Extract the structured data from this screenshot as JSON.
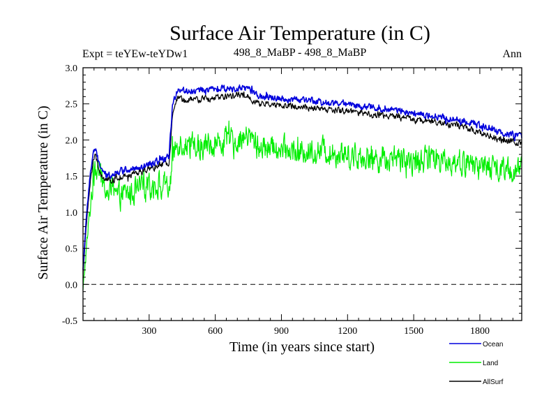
{
  "chart_data": {
    "type": "line",
    "title": "Surface Air Temperature (in C)",
    "subtitle_left": "Expt = teYEw-teYDw1",
    "subtitle_center": "498_8_MaBP - 498_8_MaBP",
    "subtitle_right": "Ann",
    "xlabel": "Time (in years since start)",
    "ylabel": "Surface Air Temperature (in C)",
    "xlim": [
      0,
      1990
    ],
    "ylim": [
      -0.5,
      3.0
    ],
    "xticks": [
      300,
      600,
      900,
      1200,
      1500,
      1800
    ],
    "yticks": [
      -0.5,
      0.0,
      0.5,
      1.0,
      1.5,
      2.0,
      2.5,
      3.0
    ],
    "ytick_labels": [
      "-0.5",
      "0.0",
      "0.5",
      "1.0",
      "1.5",
      "2.0",
      "2.5",
      "3.0"
    ],
    "zero_line": 0.0,
    "series": [
      {
        "name": "Land",
        "color": "#00ee00",
        "anchors": [
          [
            0,
            -0.1
          ],
          [
            10,
            0.3
          ],
          [
            25,
            0.8
          ],
          [
            40,
            1.3
          ],
          [
            60,
            1.6
          ],
          [
            80,
            1.5
          ],
          [
            100,
            1.3
          ],
          [
            150,
            1.2
          ],
          [
            200,
            1.25
          ],
          [
            250,
            1.3
          ],
          [
            300,
            1.35
          ],
          [
            350,
            1.4
          ],
          [
            390,
            1.3
          ],
          [
            410,
            1.8
          ],
          [
            430,
            2.0
          ],
          [
            460,
            1.95
          ],
          [
            500,
            1.9
          ],
          [
            600,
            1.95
          ],
          [
            700,
            2.0
          ],
          [
            750,
            2.05
          ],
          [
            800,
            1.9
          ],
          [
            900,
            1.85
          ],
          [
            1000,
            1.85
          ],
          [
            1100,
            1.85
          ],
          [
            1200,
            1.8
          ],
          [
            1300,
            1.75
          ],
          [
            1400,
            1.75
          ],
          [
            1500,
            1.7
          ],
          [
            1600,
            1.75
          ],
          [
            1700,
            1.7
          ],
          [
            1800,
            1.65
          ],
          [
            1900,
            1.6
          ],
          [
            1990,
            1.55
          ]
        ],
        "noise": 0.28
      },
      {
        "name": "AllSurf",
        "color": "#000000",
        "anchors": [
          [
            0,
            0.1
          ],
          [
            10,
            0.6
          ],
          [
            20,
            1.0
          ],
          [
            30,
            1.35
          ],
          [
            45,
            1.7
          ],
          [
            55,
            1.8
          ],
          [
            70,
            1.6
          ],
          [
            100,
            1.45
          ],
          [
            150,
            1.45
          ],
          [
            200,
            1.5
          ],
          [
            250,
            1.55
          ],
          [
            300,
            1.6
          ],
          [
            350,
            1.65
          ],
          [
            390,
            1.7
          ],
          [
            405,
            2.3
          ],
          [
            430,
            2.6
          ],
          [
            460,
            2.55
          ],
          [
            500,
            2.55
          ],
          [
            600,
            2.58
          ],
          [
            700,
            2.62
          ],
          [
            750,
            2.6
          ],
          [
            800,
            2.5
          ],
          [
            900,
            2.48
          ],
          [
            1000,
            2.45
          ],
          [
            1100,
            2.42
          ],
          [
            1200,
            2.4
          ],
          [
            1300,
            2.35
          ],
          [
            1400,
            2.33
          ],
          [
            1500,
            2.28
          ],
          [
            1600,
            2.25
          ],
          [
            1700,
            2.2
          ],
          [
            1800,
            2.1
          ],
          [
            1900,
            2.0
          ],
          [
            1990,
            1.95
          ]
        ],
        "noise": 0.07
      },
      {
        "name": "Ocean",
        "color": "#0000dd",
        "anchors": [
          [
            0,
            0.2
          ],
          [
            10,
            0.7
          ],
          [
            20,
            1.1
          ],
          [
            30,
            1.45
          ],
          [
            45,
            1.8
          ],
          [
            55,
            1.88
          ],
          [
            70,
            1.7
          ],
          [
            100,
            1.5
          ],
          [
            150,
            1.55
          ],
          [
            200,
            1.6
          ],
          [
            250,
            1.6
          ],
          [
            300,
            1.65
          ],
          [
            350,
            1.72
          ],
          [
            390,
            1.75
          ],
          [
            405,
            2.45
          ],
          [
            430,
            2.72
          ],
          [
            460,
            2.68
          ],
          [
            500,
            2.68
          ],
          [
            600,
            2.7
          ],
          [
            700,
            2.72
          ],
          [
            750,
            2.72
          ],
          [
            800,
            2.6
          ],
          [
            900,
            2.58
          ],
          [
            1000,
            2.55
          ],
          [
            1100,
            2.52
          ],
          [
            1200,
            2.5
          ],
          [
            1300,
            2.45
          ],
          [
            1400,
            2.42
          ],
          [
            1500,
            2.38
          ],
          [
            1600,
            2.33
          ],
          [
            1700,
            2.28
          ],
          [
            1800,
            2.2
          ],
          [
            1900,
            2.1
          ],
          [
            1990,
            2.05
          ]
        ],
        "noise": 0.07
      }
    ],
    "legend": {
      "placement": "bottom-right",
      "entries": [
        "Ocean",
        "Land",
        "AllSurf"
      ]
    }
  }
}
